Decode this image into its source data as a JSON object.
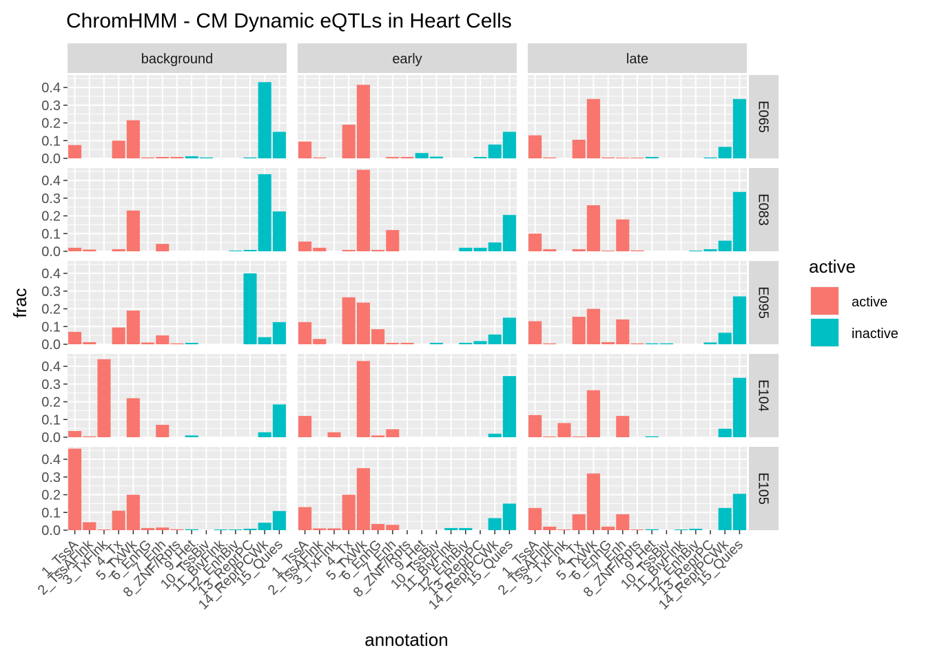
{
  "chart_data": {
    "type": "bar",
    "title": "ChromHMM - CM Dynamic eQTLs in Heart Cells",
    "xlabel": "annotation",
    "ylabel": "frac",
    "ylim": [
      0,
      0.47
    ],
    "yticks": [
      "0.0",
      "0.1",
      "0.2",
      "0.3",
      "0.4"
    ],
    "columns": [
      "background",
      "early",
      "late"
    ],
    "rows": [
      "E065",
      "E083",
      "E095",
      "E104",
      "E105"
    ],
    "categories": [
      "1_TssA",
      "2_TssAFlnk",
      "3_TxFlnk",
      "4_Tx",
      "5_TxWk",
      "6_EnhG",
      "7_Enh",
      "8_ZNF/Rpts",
      "9_Het",
      "10_TssBiv",
      "11_BivFlnk",
      "12_EnhBiv",
      "13_ReprPC",
      "14_ReprPCWk",
      "15_Quies"
    ],
    "active_flags": [
      "active",
      "active",
      "active",
      "active",
      "active",
      "active",
      "active",
      "active",
      "inactive",
      "inactive",
      "inactive",
      "inactive",
      "inactive",
      "inactive",
      "inactive"
    ],
    "legend": {
      "title": "active",
      "position": "right",
      "entries": [
        {
          "label": "active",
          "color": "#F8766D"
        },
        {
          "label": "inactive",
          "color": "#00BFC4"
        }
      ]
    },
    "colors": {
      "active": "#F8766D",
      "inactive": "#00BFC4",
      "panel_bg": "#EBEBEB",
      "grid": "#FFFFFF",
      "strip_bg": "#D9D9D9"
    },
    "grid": true,
    "panels": {
      "E065": {
        "background": [
          0.075,
          0.0,
          0.0,
          0.1,
          0.215,
          0.005,
          0.008,
          0.008,
          0.012,
          0.005,
          0.0,
          0.0,
          0.005,
          0.43,
          0.15
        ],
        "early": [
          0.095,
          0.005,
          0.0,
          0.19,
          0.415,
          0.0,
          0.008,
          0.008,
          0.03,
          0.01,
          0.0,
          0.0,
          0.008,
          0.078,
          0.15
        ],
        "late": [
          0.13,
          0.005,
          0.0,
          0.105,
          0.335,
          0.005,
          0.004,
          0.004,
          0.008,
          0.0,
          0.0,
          0.0,
          0.005,
          0.065,
          0.335
        ]
      },
      "E083": {
        "background": [
          0.02,
          0.01,
          0.0,
          0.012,
          0.23,
          0.0,
          0.042,
          0.0,
          0.0,
          0.0,
          0.0,
          0.004,
          0.008,
          0.435,
          0.225
        ],
        "early": [
          0.055,
          0.02,
          0.0,
          0.008,
          0.46,
          0.008,
          0.12,
          0.0,
          0.0,
          0.0,
          0.0,
          0.02,
          0.02,
          0.05,
          0.205
        ],
        "late": [
          0.1,
          0.012,
          0.0,
          0.012,
          0.26,
          0.004,
          0.18,
          0.005,
          0.0,
          0.0,
          0.0,
          0.004,
          0.012,
          0.06,
          0.335
        ]
      },
      "E095": {
        "background": [
          0.07,
          0.012,
          0.0,
          0.095,
          0.19,
          0.01,
          0.05,
          0.005,
          0.008,
          0.0,
          0.0,
          0.0,
          0.4,
          0.04,
          0.125
        ],
        "early": [
          0.125,
          0.03,
          0.0,
          0.265,
          0.235,
          0.085,
          0.008,
          0.008,
          0.0,
          0.008,
          0.0,
          0.008,
          0.018,
          0.055,
          0.15
        ],
        "late": [
          0.13,
          0.005,
          0.0,
          0.155,
          0.2,
          0.012,
          0.14,
          0.005,
          0.005,
          0.005,
          0.0,
          0.0,
          0.01,
          0.065,
          0.27
        ]
      },
      "E104": {
        "background": [
          0.035,
          0.005,
          0.44,
          0.0,
          0.22,
          0.0,
          0.07,
          0.0,
          0.01,
          0.0,
          0.0,
          0.0,
          0.0,
          0.028,
          0.185
        ],
        "early": [
          0.12,
          0.0,
          0.028,
          0.0,
          0.43,
          0.01,
          0.045,
          0.0,
          0.0,
          0.0,
          0.0,
          0.0,
          0.0,
          0.02,
          0.345
        ],
        "late": [
          0.125,
          0.004,
          0.08,
          0.004,
          0.265,
          0.0,
          0.12,
          0.0,
          0.005,
          0.0,
          0.0,
          0.0,
          0.0,
          0.048,
          0.335
        ]
      },
      "E105": {
        "background": [
          0.46,
          0.045,
          0.004,
          0.11,
          0.2,
          0.012,
          0.015,
          0.005,
          0.005,
          0.0,
          0.004,
          0.004,
          0.008,
          0.042,
          0.108
        ],
        "early": [
          0.13,
          0.01,
          0.01,
          0.2,
          0.35,
          0.035,
          0.03,
          0.0,
          0.0,
          0.0,
          0.012,
          0.012,
          0.0,
          0.068,
          0.15
        ],
        "late": [
          0.125,
          0.02,
          0.004,
          0.09,
          0.32,
          0.02,
          0.09,
          0.004,
          0.005,
          0.0,
          0.004,
          0.008,
          0.0,
          0.125,
          0.205
        ]
      }
    }
  }
}
